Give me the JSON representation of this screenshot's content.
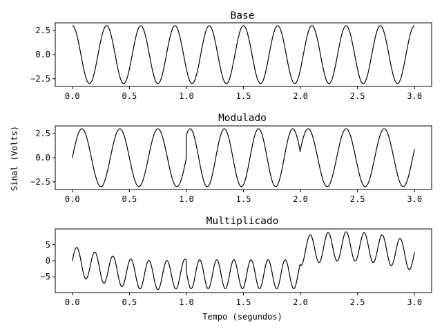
{
  "figure": {
    "ylabel": "Sinal (Volts)",
    "xlabel": "Tempo (segundos)",
    "line_color": "#000000"
  },
  "chart_data": [
    {
      "type": "line",
      "title": "Base",
      "xlim": [
        -0.15,
        3.15
      ],
      "ylim": [
        -3.3,
        3.3
      ],
      "xticks": [
        0.0,
        0.5,
        1.0,
        1.5,
        2.0,
        2.5,
        3.0
      ],
      "xtick_labels": [
        "0.0",
        "0.5",
        "1.0",
        "1.5",
        "2.0",
        "2.5",
        "3.0"
      ],
      "yticks": [
        2.5,
        0.0,
        -2.5
      ],
      "ytick_labels": [
        "2.5",
        "0.0",
        "−2.5"
      ],
      "series": [
        {
          "signal": "3*cos(2*pi*f*t)",
          "amplitude": 3,
          "frequency_hz": 3.333,
          "t_start": 0,
          "t_end": 3
        }
      ]
    },
    {
      "type": "line",
      "title": "Modulado",
      "xlim": [
        -0.15,
        3.15
      ],
      "ylim": [
        -3.3,
        3.3
      ],
      "xticks": [
        0.0,
        0.5,
        1.0,
        1.5,
        2.0,
        2.5,
        3.0
      ],
      "xtick_labels": [
        "0.0",
        "0.5",
        "1.0",
        "1.5",
        "2.0",
        "2.5",
        "3.0"
      ],
      "yticks": [
        2.5,
        0.0,
        -2.5
      ],
      "ytick_labels": [
        "2.5",
        "0.0",
        "−2.5"
      ],
      "series": [
        {
          "signal": "3*sin(2*pi*f*t + phase)",
          "amplitude": 3,
          "segments": [
            {
              "t_start": 0,
              "t_end": 1,
              "frequency_hz": 3.0,
              "phase_rad": 0
            },
            {
              "t_start": 1,
              "t_end": 2,
              "frequency_hz": 3.333,
              "phase_rad": -1.2
            },
            {
              "t_start": 2,
              "t_end": 3,
              "frequency_hz": 3.0,
              "phase_rad": 0.3
            }
          ]
        }
      ]
    },
    {
      "type": "line",
      "title": "Multiplicado",
      "xlim": [
        -0.15,
        3.15
      ],
      "ylim": [
        -9.9,
        9.9
      ],
      "xticks": [
        0.0,
        0.5,
        1.0,
        1.5,
        2.0,
        2.5,
        3.0
      ],
      "xtick_labels": [
        "0.0",
        "0.5",
        "1.0",
        "1.5",
        "2.0",
        "2.5",
        "3.0"
      ],
      "yticks": [
        5,
        0,
        -5
      ],
      "ytick_labels": [
        "5",
        "0",
        "−5"
      ],
      "series": [
        {
          "signal": "base * modulado",
          "t_start": 0,
          "t_end": 3
        }
      ]
    }
  ]
}
